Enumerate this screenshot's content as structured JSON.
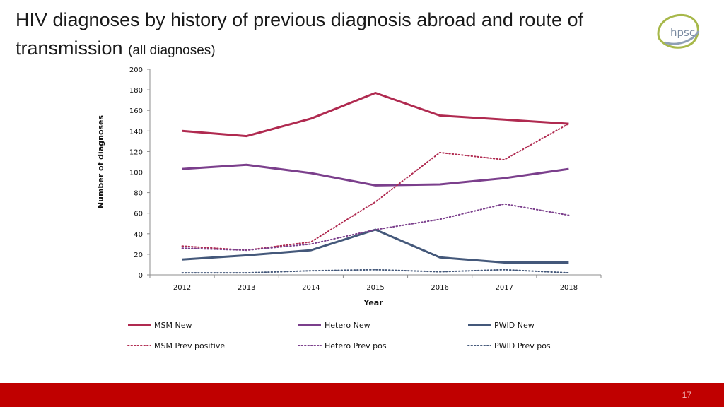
{
  "slide": {
    "title_main": "HIV diagnoses by history of previous diagnosis abroad and route of transmission",
    "title_sub": "(all diagnoses)",
    "logo_text": "hpsc",
    "page_number": "17"
  },
  "colors": {
    "msm": "#b02a50",
    "hetero": "#7b3f8c",
    "pwid": "#44587a",
    "footer": "#c00000"
  },
  "chart_data": {
    "type": "line",
    "title": "",
    "xlabel": "Year",
    "ylabel": "Number of diagnoses",
    "x": [
      "2012",
      "2013",
      "2014",
      "2015",
      "2016",
      "2017",
      "2018"
    ],
    "ylim": [
      0,
      200
    ],
    "yticks": [
      0,
      20,
      40,
      60,
      80,
      100,
      120,
      140,
      160,
      180,
      200
    ],
    "grid": false,
    "legend_position": "bottom",
    "series": [
      {
        "name": "MSM New",
        "color": "#b02a50",
        "style": "solid",
        "values": [
          140,
          135,
          152,
          177,
          155,
          151,
          147
        ]
      },
      {
        "name": "Hetero New",
        "color": "#7b3f8c",
        "style": "solid",
        "values": [
          103,
          107,
          99,
          87,
          88,
          94,
          103
        ]
      },
      {
        "name": "PWID New",
        "color": "#44587a",
        "style": "solid",
        "values": [
          15,
          19,
          24,
          44,
          17,
          12,
          12
        ]
      },
      {
        "name": "MSM Prev positive",
        "color": "#b02a50",
        "style": "dotted",
        "values": [
          28,
          24,
          32,
          71,
          119,
          112,
          147
        ]
      },
      {
        "name": "Hetero Prev pos",
        "color": "#7b3f8c",
        "style": "dotted",
        "values": [
          26,
          24,
          30,
          44,
          54,
          69,
          58
        ]
      },
      {
        "name": "PWID Prev pos",
        "color": "#44587a",
        "style": "dotted",
        "values": [
          2,
          2,
          4,
          5,
          3,
          5,
          2
        ]
      }
    ]
  }
}
